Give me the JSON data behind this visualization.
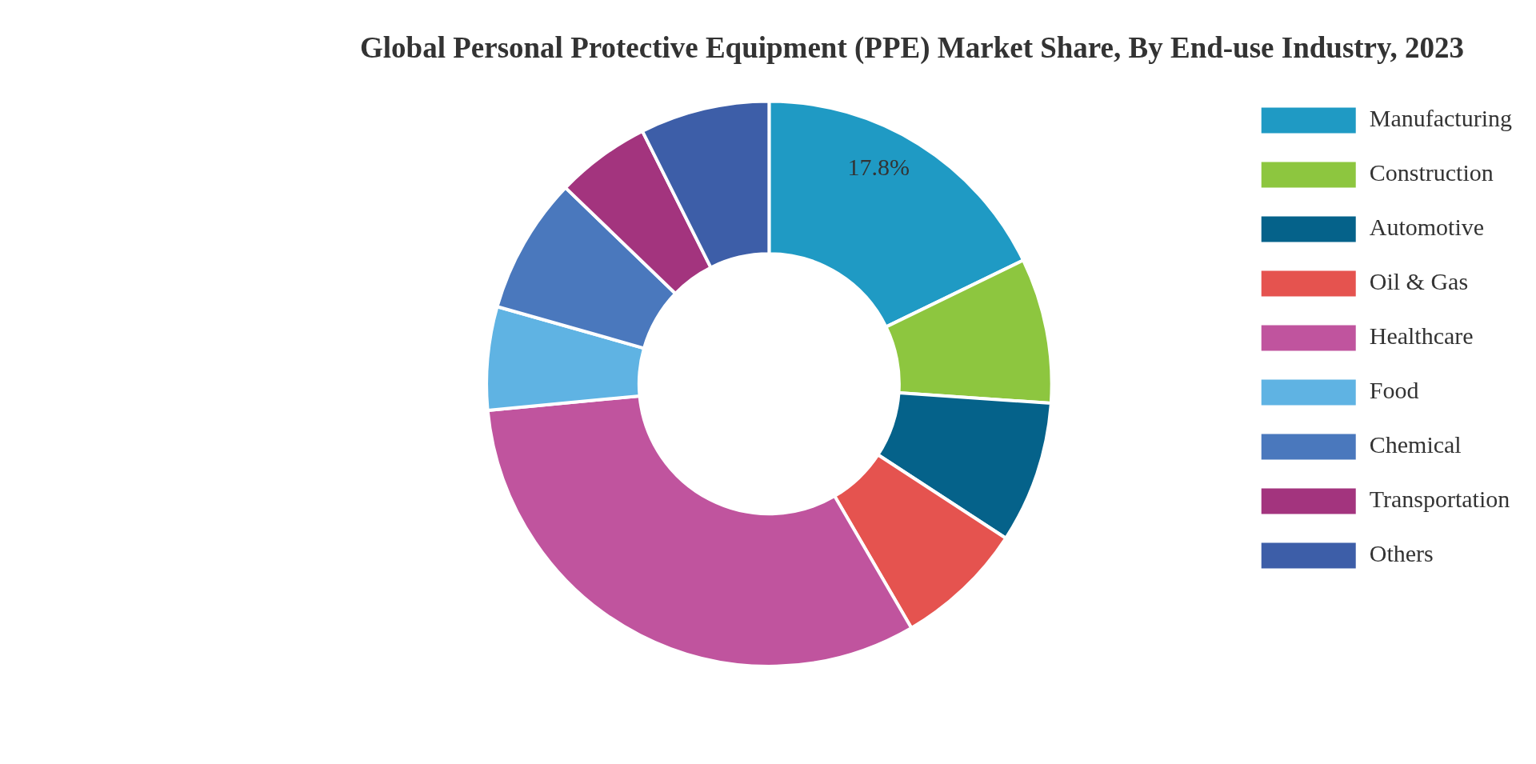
{
  "chart_data": {
    "type": "donut",
    "title": "Global Personal Protective Equipment (PPE) Market Share, By End-use Industry, 2023",
    "categories": [
      "Manufacturing",
      "Construction",
      "Automotive",
      "Oil & Gas",
      "Healthcare",
      "Food",
      "Chemical",
      "Transportation",
      "Others"
    ],
    "values": [
      17.8,
      8.3,
      8.1,
      7.4,
      31.9,
      5.9,
      7.8,
      5.4,
      7.4
    ],
    "colors": [
      "#1f9ac4",
      "#8dc63f",
      "#05628a",
      "#e5534f",
      "#c0549e",
      "#5fb3e3",
      "#4a78bd",
      "#a3347e",
      "#3d5ea8"
    ],
    "value_labels": [
      "17.8%",
      null,
      null,
      null,
      null,
      null,
      null,
      null,
      null
    ],
    "legend": "right"
  }
}
